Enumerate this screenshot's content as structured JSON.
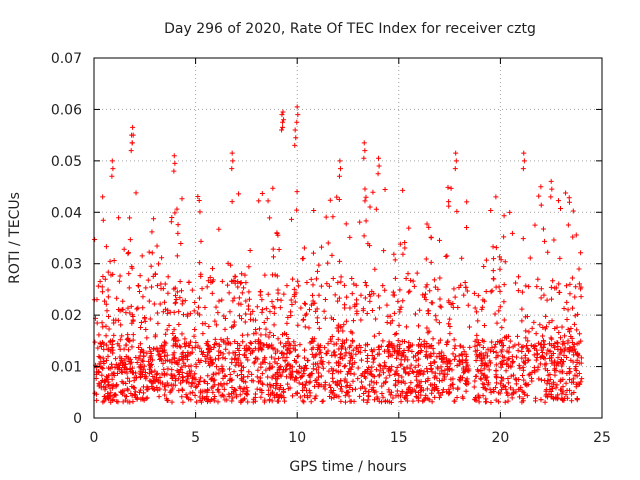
{
  "chart_data": {
    "type": "scatter",
    "title": "Day 296 of 2020, Rate Of TEC Index for receiver cztg",
    "xlabel": "GPS time / hours",
    "ylabel": "ROTI / TECUs",
    "xlim": [
      0,
      25
    ],
    "ylim": [
      0,
      0.07
    ],
    "x_ticks": [
      "0",
      "5",
      "10",
      "15",
      "20",
      "25"
    ],
    "y_ticks": [
      "0",
      "0.01",
      "0.02",
      "0.03",
      "0.04",
      "0.05",
      "0.06",
      "0.07"
    ],
    "grid": true,
    "marker": "plus",
    "color": "#ff0000",
    "observation_span_hours": [
      0,
      24
    ],
    "typical_band": [
      0.003,
      0.015
    ],
    "data_gap_hours": [
      18.5,
      18.7
    ],
    "notable_peaks": [
      {
        "x": 1.9,
        "y": 0.0565
      },
      {
        "x": 1.85,
        "y": 0.055
      },
      {
        "x": 0.9,
        "y": 0.05
      },
      {
        "x": 3.95,
        "y": 0.051
      },
      {
        "x": 6.8,
        "y": 0.0515
      },
      {
        "x": 9.25,
        "y": 0.059
      },
      {
        "x": 9.3,
        "y": 0.0595
      },
      {
        "x": 10.0,
        "y": 0.0605
      },
      {
        "x": 9.9,
        "y": 0.056
      },
      {
        "x": 12.1,
        "y": 0.05
      },
      {
        "x": 13.3,
        "y": 0.0535
      },
      {
        "x": 14.0,
        "y": 0.0505
      },
      {
        "x": 17.8,
        "y": 0.0515
      },
      {
        "x": 21.15,
        "y": 0.0515
      },
      {
        "x": 22.5,
        "y": 0.046
      }
    ]
  }
}
